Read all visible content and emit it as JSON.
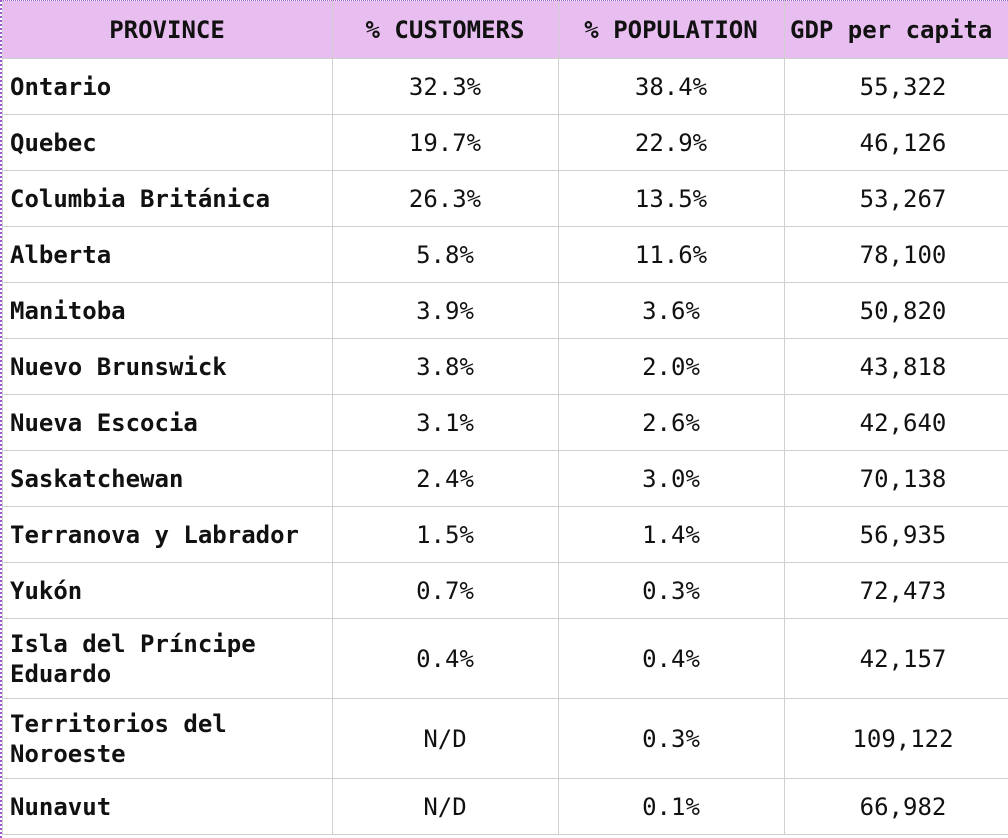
{
  "table": {
    "headers": [
      "PROVINCE",
      "% CUSTOMERS",
      "% POPULATION",
      "GDP per capita"
    ],
    "rows": [
      {
        "province": "Ontario",
        "customers": "32.3%",
        "population": "38.4%",
        "gdp": "55,322"
      },
      {
        "province": "Quebec",
        "customers": "19.7%",
        "population": "22.9%",
        "gdp": "46,126"
      },
      {
        "province": "Columbia Británica",
        "customers": "26.3%",
        "population": "13.5%",
        "gdp": "53,267"
      },
      {
        "province": "Alberta",
        "customers": "5.8%",
        "population": "11.6%",
        "gdp": "78,100"
      },
      {
        "province": "Manitoba",
        "customers": "3.9%",
        "population": "3.6%",
        "gdp": "50,820"
      },
      {
        "province": "Nuevo Brunswick",
        "customers": "3.8%",
        "population": "2.0%",
        "gdp": "43,818"
      },
      {
        "province": "Nueva Escocia",
        "customers": "3.1%",
        "population": "2.6%",
        "gdp": "42,640"
      },
      {
        "province": "Saskatchewan",
        "customers": "2.4%",
        "population": "3.0%",
        "gdp": "70,138"
      },
      {
        "province": "Terranova y Labrador",
        "customers": "1.5%",
        "population": "1.4%",
        "gdp": "56,935"
      },
      {
        "province": "Yukón",
        "customers": "0.7%",
        "population": "0.3%",
        "gdp": "72,473"
      },
      {
        "province": "Isla del Príncipe Eduardo",
        "customers": "0.4%",
        "population": "0.4%",
        "gdp": "42,157"
      },
      {
        "province": "Territorios del Noroeste",
        "customers": "N/D",
        "population": "0.3%",
        "gdp": "109,122"
      },
      {
        "province": "Nunavut",
        "customers": "N/D",
        "population": "0.1%",
        "gdp": "66,982"
      }
    ]
  }
}
